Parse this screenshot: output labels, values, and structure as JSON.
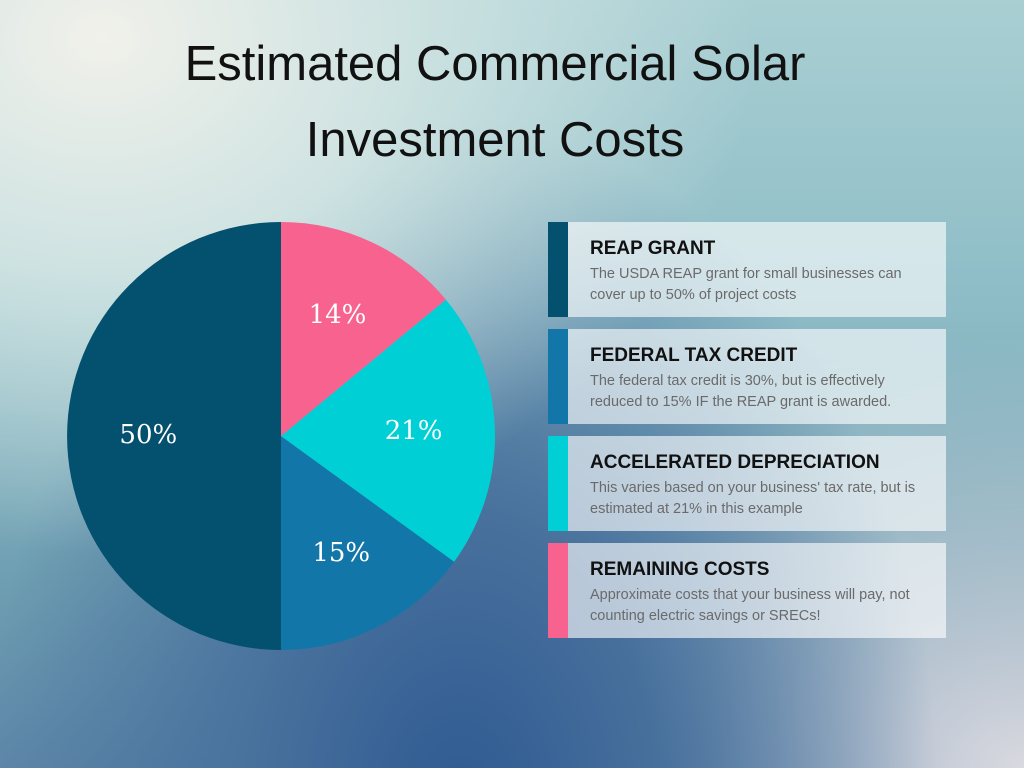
{
  "chart_data": {
    "type": "pie",
    "title": "Estimated Commercial Solar Investment Costs",
    "categories": [
      "REAP GRANT",
      "FEDERAL TAX CREDIT",
      "ACCELERATED DEPRECIATION",
      "REMAINING COSTS"
    ],
    "descriptions": [
      "The USDA REAP grant  for small businesses can cover up to 50% of project costs",
      "The federal tax credit is 30%, but is effectively reduced to 15% IF the REAP grant is awarded.",
      "This varies based on your business' tax rate, but is estimated at 21% in this example",
      "Approximate costs that your business will pay, not counting electric savings or SRECs!"
    ],
    "values": [
      50,
      15,
      21,
      14
    ],
    "value_labels": [
      "50%",
      "15%",
      "21%",
      "14%"
    ],
    "colors": [
      "#04506f",
      "#1277a8",
      "#00d0d6",
      "#f7628e"
    ]
  }
}
